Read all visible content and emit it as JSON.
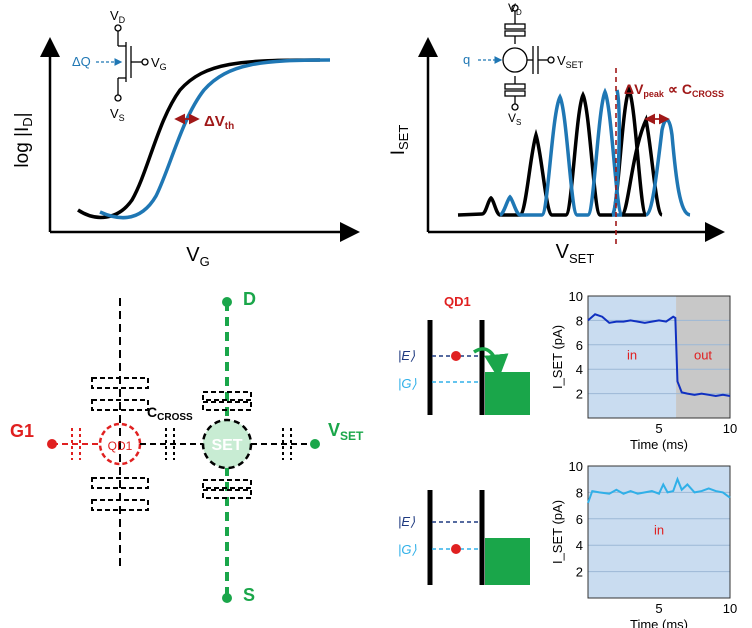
{
  "panel_a": {
    "y_label": "log |I",
    "y_label_sub": "D",
    "y_label_end": "|",
    "x_label": "V",
    "x_label_sub": "G",
    "dq_label": "ΔQ",
    "vd_label": "V",
    "vd_sub": "D",
    "vg_label": "V",
    "vg_sub": "G",
    "vs_label": "V",
    "vs_sub": "S",
    "dvth_label": "ΔV",
    "dvth_sub": "th"
  },
  "panel_b": {
    "y_label": "I",
    "y_label_sub": "SET",
    "x_label": "V",
    "x_label_sub": "SET",
    "q_label": "q",
    "vd_label": "V",
    "vd_sub": "D",
    "vset_label": "V",
    "vset_sub": "SET",
    "vs_label": "V",
    "vs_sub": "S",
    "dvpeak_label": "ΔV",
    "dvpeak_sub": "peak",
    "prop_label": "∝ C",
    "prop_sub": "CROSS"
  },
  "panel_c": {
    "g1_label": "G1",
    "d_label": "D",
    "s_label": "S",
    "vset_label": "V",
    "vset_sub": "SET",
    "ccross_label": "C",
    "ccross_sub": "CROSS",
    "qd1_label": "QD1",
    "set_label": "SET"
  },
  "panel_d": {
    "qd1_label": "QD1",
    "e_label": "|E⟩",
    "g_label": "|G⟩"
  },
  "colors": {
    "blue": "#1f77b4",
    "black": "#000000",
    "green": "#1aa64a",
    "red": "#e02020",
    "darkred": "#a01818",
    "plot_bg": "#c9dcf0",
    "out_bg": "#c8c8c8"
  },
  "chart_data": [
    {
      "type": "line",
      "title": "",
      "xlabel": "Time (ms)",
      "ylabel": "I_SET (pA)",
      "xlim": [
        0,
        10
      ],
      "ylim": [
        0,
        10
      ],
      "x_ticks": [
        "5",
        "10"
      ],
      "y_ticks": [
        "2",
        "4",
        "6",
        "8",
        "10"
      ],
      "regions": [
        {
          "label": "in",
          "from": 0,
          "to": 6.2
        },
        {
          "label": "out",
          "from": 6.2,
          "to": 10
        }
      ],
      "series": [
        {
          "color": "#1030c0",
          "x": [
            0,
            0.5,
            1,
            1.5,
            2,
            2.5,
            3,
            3.5,
            4,
            4.5,
            5,
            5.5,
            6,
            6.15,
            6.3,
            6.6,
            7,
            7.5,
            8,
            8.5,
            9,
            9.5,
            10
          ],
          "y": [
            8.0,
            8.5,
            8.3,
            7.8,
            7.9,
            7.9,
            8.0,
            7.9,
            7.8,
            7.9,
            8.0,
            7.9,
            8.3,
            8.2,
            3.0,
            2.1,
            2.0,
            1.9,
            2.0,
            1.9,
            1.8,
            1.9,
            1.8
          ]
        }
      ]
    },
    {
      "type": "line",
      "title": "",
      "xlabel": "Time (ms)",
      "ylabel": "I_SET (pA)",
      "xlim": [
        0,
        10
      ],
      "ylim": [
        0,
        10
      ],
      "x_ticks": [
        "5",
        "10"
      ],
      "y_ticks": [
        "2",
        "4",
        "6",
        "8",
        "10"
      ],
      "regions": [
        {
          "label": "in",
          "from": 0,
          "to": 10
        }
      ],
      "series": [
        {
          "color": "#30b0e8",
          "x": [
            0,
            0.3,
            0.8,
            1.5,
            2,
            2.5,
            3,
            3.5,
            4,
            4.5,
            5,
            5.3,
            5.6,
            6,
            6.3,
            6.6,
            7,
            7.5,
            8,
            8.5,
            9,
            9.5,
            10
          ],
          "y": [
            7.2,
            8.1,
            8.0,
            7.9,
            8.2,
            7.9,
            8.1,
            7.9,
            8.0,
            8.1,
            7.9,
            8.6,
            8.0,
            8.1,
            9.0,
            8.2,
            8.6,
            8.0,
            8.1,
            8.3,
            8.1,
            8.0,
            7.6
          ]
        }
      ]
    }
  ]
}
